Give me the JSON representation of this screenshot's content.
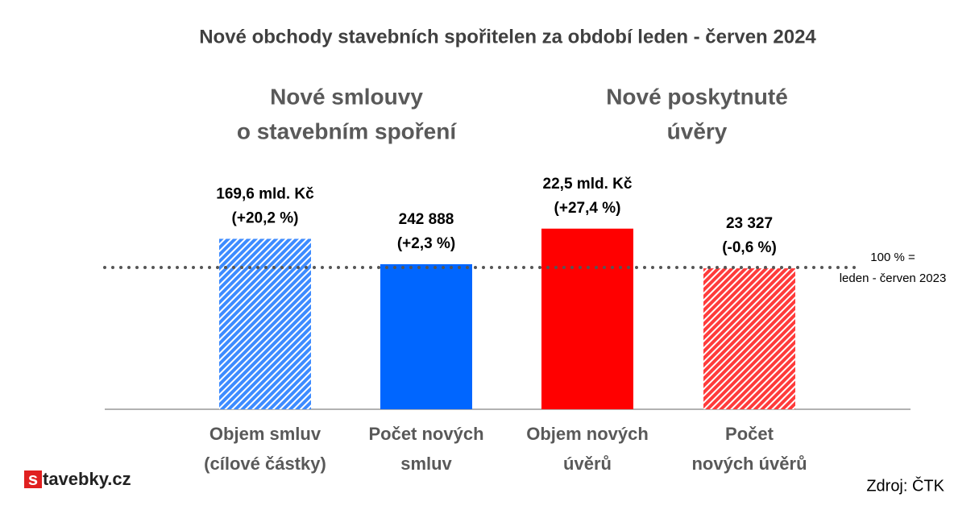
{
  "chart_data": {
    "type": "bar",
    "title": "Nové obchody stavebních spořitelen za období leden - červen 2024",
    "groups": [
      {
        "lines": [
          "Nové smlouvy",
          "o stavebním spoření"
        ]
      },
      {
        "lines": [
          "Nové poskytnuté",
          "úvěry"
        ]
      }
    ],
    "categories": [
      [
        "Objem smluv",
        "(cílové částky)"
      ],
      [
        "Počet  nových",
        "smluv"
      ],
      [
        "Objem nových",
        "úvěrů"
      ],
      [
        "Počet",
        "nových úvěrů"
      ]
    ],
    "values": [
      20.2,
      2.3,
      27.4,
      -0.6
    ],
    "value_labels": [
      "(+20,2 %)",
      "(+2,3 %)",
      "(+27,4 %)",
      "(-0,6 %)"
    ],
    "amount_labels": [
      "169,6 mld. Kč",
      "242 888",
      "22,5 mld. Kč",
      "23 327"
    ],
    "colors": [
      "#3d8bff",
      "#0066ff",
      "#ff0000",
      "#ff3b3b"
    ],
    "hatched": [
      true,
      false,
      false,
      true
    ],
    "ylim": [
      -100,
      60
    ],
    "reference_line": {
      "value": 0,
      "lines": [
        "100 % =",
        "leden - červen 2023"
      ]
    },
    "logo_box": "s",
    "logo_text": "tavebky.cz",
    "source": "Zdroj: ČTK"
  }
}
